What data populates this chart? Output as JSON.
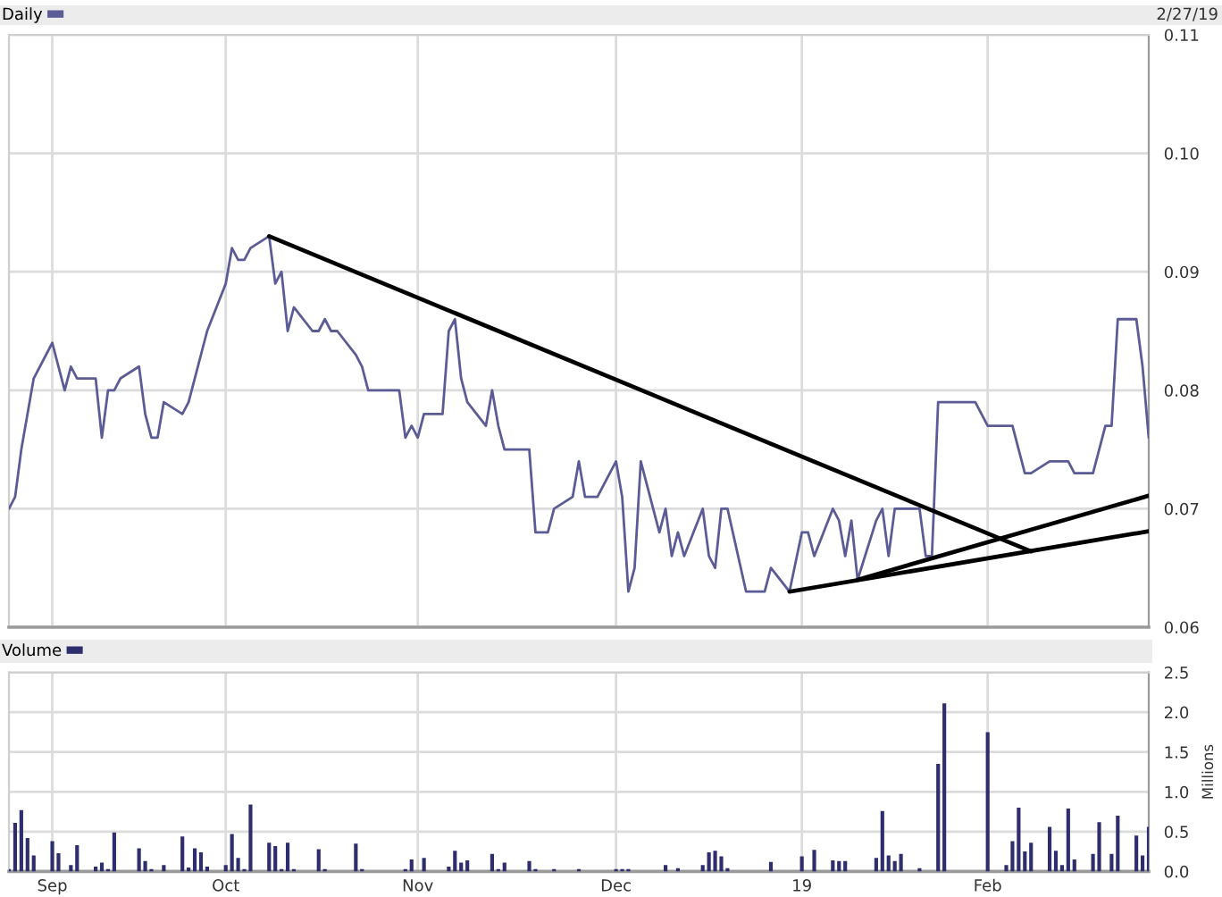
{
  "chart_data": [
    {
      "type": "line",
      "x": [
        "2018-08-27",
        "2018-08-28",
        "2018-08-29",
        "2018-08-30",
        "2018-08-31",
        "2018-09-03",
        "2018-09-04",
        "2018-09-05",
        "2018-09-06",
        "2018-09-07",
        "2018-09-10",
        "2018-09-11",
        "2018-09-12",
        "2018-09-13",
        "2018-09-14",
        "2018-09-17",
        "2018-09-18",
        "2018-09-19",
        "2018-09-20",
        "2018-09-21",
        "2018-09-24",
        "2018-09-25",
        "2018-09-26",
        "2018-09-27",
        "2018-09-28",
        "2018-10-01",
        "2018-10-02",
        "2018-10-03",
        "2018-10-04",
        "2018-10-05",
        "2018-10-08",
        "2018-10-09",
        "2018-10-10",
        "2018-10-11",
        "2018-10-12",
        "2018-10-15",
        "2018-10-16",
        "2018-10-17",
        "2018-10-18",
        "2018-10-19",
        "2018-10-22",
        "2018-10-23",
        "2018-10-24",
        "2018-10-25",
        "2018-10-26",
        "2018-10-29",
        "2018-10-30",
        "2018-10-31",
        "2018-11-01",
        "2018-11-02",
        "2018-11-05",
        "2018-11-06",
        "2018-11-07",
        "2018-11-08",
        "2018-11-09",
        "2018-11-12",
        "2018-11-13",
        "2018-11-14",
        "2018-11-15",
        "2018-11-16",
        "2018-11-19",
        "2018-11-20",
        "2018-11-21",
        "2018-11-22",
        "2018-11-23",
        "2018-11-26",
        "2018-11-27",
        "2018-11-28",
        "2018-11-29",
        "2018-11-30",
        "2018-12-03",
        "2018-12-04",
        "2018-12-05",
        "2018-12-06",
        "2018-12-07",
        "2018-12-10",
        "2018-12-11",
        "2018-12-12",
        "2018-12-13",
        "2018-12-14",
        "2018-12-17",
        "2018-12-18",
        "2018-12-19",
        "2018-12-20",
        "2018-12-21",
        "2018-12-24",
        "2018-12-27",
        "2018-12-28",
        "2018-12-31",
        "2019-01-02",
        "2019-01-03",
        "2019-01-04",
        "2019-01-07",
        "2019-01-08",
        "2019-01-09",
        "2019-01-10",
        "2019-01-11",
        "2019-01-14",
        "2019-01-15",
        "2019-01-16",
        "2019-01-17",
        "2019-01-18",
        "2019-01-21",
        "2019-01-22",
        "2019-01-23",
        "2019-01-24",
        "2019-01-25",
        "2019-01-29",
        "2019-01-30",
        "2019-01-31",
        "2019-02-01",
        "2019-02-04",
        "2019-02-05",
        "2019-02-06",
        "2019-02-07",
        "2019-02-08",
        "2019-02-11",
        "2019-02-12",
        "2019-02-13",
        "2019-02-14",
        "2019-02-15",
        "2019-02-18",
        "2019-02-19",
        "2019-02-20",
        "2019-02-21",
        "2019-02-22",
        "2019-02-25",
        "2019-02-26",
        "2019-02-27"
      ],
      "series": [
        {
          "name": "Daily",
          "color": "#5b5b95",
          "values": [
            0.07,
            0.071,
            0.075,
            0.078,
            0.081,
            0.084,
            0.082,
            0.08,
            0.082,
            0.081,
            0.081,
            0.076,
            0.08,
            0.08,
            0.081,
            0.082,
            0.078,
            0.076,
            0.076,
            0.079,
            0.078,
            0.079,
            0.081,
            0.083,
            0.085,
            0.089,
            0.092,
            0.091,
            0.091,
            0.092,
            0.093,
            0.089,
            0.09,
            0.085,
            0.087,
            0.085,
            0.085,
            0.086,
            0.085,
            0.085,
            0.083,
            0.082,
            0.08,
            0.08,
            0.08,
            0.08,
            0.076,
            0.077,
            0.076,
            0.078,
            0.078,
            0.085,
            0.086,
            0.081,
            0.079,
            0.077,
            0.08,
            0.077,
            0.075,
            0.075,
            0.075,
            0.068,
            0.068,
            0.068,
            0.07,
            0.071,
            0.074,
            0.071,
            0.071,
            0.071,
            0.074,
            0.071,
            0.063,
            0.065,
            0.074,
            0.068,
            0.07,
            0.066,
            0.068,
            0.066,
            0.07,
            0.066,
            0.065,
            0.07,
            0.07,
            0.063,
            0.063,
            0.065,
            0.063,
            0.068,
            0.068,
            0.066,
            0.07,
            0.069,
            0.066,
            0.069,
            0.064,
            0.069,
            0.07,
            0.066,
            0.07,
            0.07,
            0.07,
            0.066,
            0.066,
            0.079,
            0.079,
            0.079,
            0.079,
            0.078,
            0.077,
            0.077,
            0.077,
            0.075,
            0.073,
            0.073,
            0.074,
            0.074,
            0.074,
            0.074,
            0.073,
            0.073,
            0.075,
            0.077,
            0.077,
            0.086,
            0.086,
            0.082,
            0.076
          ]
        },
        {
          "color": "#000000",
          "x": [
            "2018-10-08",
            "2019-02-08"
          ],
          "values": [
            0.093,
            0.0664
          ]
        },
        {
          "color": "#000000",
          "x": [
            "2018-12-31",
            "2019-02-27"
          ],
          "values": [
            0.063,
            0.0681
          ]
        },
        {
          "color": "#000000",
          "x": [
            "2019-01-11",
            "2019-02-27"
          ],
          "values": [
            0.064,
            0.0711
          ]
        }
      ],
      "xlim": [
        "2018-08-27",
        "2019-02-27"
      ],
      "xticks": [
        {
          "value": "2018-09-03",
          "label": null
        },
        {
          "value": "2018-10-01",
          "label": null
        },
        {
          "value": "2018-11-01",
          "label": null
        },
        {
          "value": "2018-12-03",
          "label": null
        },
        {
          "value": "2019-01-02",
          "label": null
        },
        {
          "value": "2019-02-01",
          "label": null
        }
      ],
      "ylim": [
        0.06,
        0.11
      ],
      "yticks": [
        0.06,
        0.07,
        0.08,
        0.09,
        {
          "value": 0.1,
          "label": "0.10"
        },
        0.11
      ],
      "grid": true,
      "legend": "top left",
      "tick_labels": "y",
      "annotations": [
        "2/27/19"
      ]
    },
    {
      "type": "bar",
      "x": [
        "2018-08-27",
        "2018-08-28",
        "2018-08-29",
        "2018-08-30",
        "2018-08-31",
        "2018-09-03",
        "2018-09-04",
        "2018-09-05",
        "2018-09-06",
        "2018-09-07",
        "2018-09-10",
        "2018-09-11",
        "2018-09-12",
        "2018-09-13",
        "2018-09-14",
        "2018-09-17",
        "2018-09-18",
        "2018-09-19",
        "2018-09-20",
        "2018-09-21",
        "2018-09-24",
        "2018-09-25",
        "2018-09-26",
        "2018-09-27",
        "2018-09-28",
        "2018-10-01",
        "2018-10-02",
        "2018-10-03",
        "2018-10-04",
        "2018-10-05",
        "2018-10-08",
        "2018-10-09",
        "2018-10-10",
        "2018-10-11",
        "2018-10-12",
        "2018-10-15",
        "2018-10-16",
        "2018-10-17",
        "2018-10-18",
        "2018-10-19",
        "2018-10-22",
        "2018-10-23",
        "2018-10-24",
        "2018-10-25",
        "2018-10-26",
        "2018-10-29",
        "2018-10-30",
        "2018-10-31",
        "2018-11-01",
        "2018-11-02",
        "2018-11-05",
        "2018-11-06",
        "2018-11-07",
        "2018-11-08",
        "2018-11-09",
        "2018-11-12",
        "2018-11-13",
        "2018-11-14",
        "2018-11-15",
        "2018-11-16",
        "2018-11-19",
        "2018-11-20",
        "2018-11-21",
        "2018-11-22",
        "2018-11-23",
        "2018-11-26",
        "2018-11-27",
        "2018-11-28",
        "2018-11-29",
        "2018-11-30",
        "2018-12-03",
        "2018-12-04",
        "2018-12-05",
        "2018-12-06",
        "2018-12-07",
        "2018-12-10",
        "2018-12-11",
        "2018-12-12",
        "2018-12-13",
        "2018-12-14",
        "2018-12-17",
        "2018-12-18",
        "2018-12-19",
        "2018-12-20",
        "2018-12-21",
        "2018-12-24",
        "2018-12-27",
        "2018-12-28",
        "2018-12-31",
        "2019-01-02",
        "2019-01-03",
        "2019-01-04",
        "2019-01-07",
        "2019-01-08",
        "2019-01-09",
        "2019-01-10",
        "2019-01-11",
        "2019-01-14",
        "2019-01-15",
        "2019-01-16",
        "2019-01-17",
        "2019-01-18",
        "2019-01-21",
        "2019-01-22",
        "2019-01-23",
        "2019-01-24",
        "2019-01-25",
        "2019-01-29",
        "2019-01-30",
        "2019-01-31",
        "2019-02-01",
        "2019-02-04",
        "2019-02-05",
        "2019-02-06",
        "2019-02-07",
        "2019-02-08",
        "2019-02-11",
        "2019-02-12",
        "2019-02-13",
        "2019-02-14",
        "2019-02-15",
        "2019-02-18",
        "2019-02-19",
        "2019-02-20",
        "2019-02-21",
        "2019-02-22",
        "2019-02-25",
        "2019-02-26",
        "2019-02-27"
      ],
      "series": [
        {
          "name": "Volume",
          "color": "#2e2e6e",
          "values": [
            0.03,
            0.61,
            0.77,
            0.42,
            0.2,
            0.38,
            0.23,
            null,
            0.08,
            0.33,
            0.06,
            0.11,
            0.03,
            0.49,
            null,
            0.29,
            0.13,
            0.03,
            null,
            0.08,
            0.44,
            0.05,
            0.29,
            0.24,
            0.06,
            0.08,
            0.47,
            0.17,
            0.03,
            0.84,
            0.36,
            0.32,
            0.03,
            0.36,
            0.03,
            null,
            0.28,
            0.03,
            null,
            null,
            0.35,
            0.03,
            null,
            null,
            null,
            null,
            0.03,
            0.15,
            null,
            0.17,
            null,
            0.06,
            0.26,
            0.11,
            0.14,
            null,
            0.22,
            0.03,
            0.11,
            null,
            0.13,
            0.03,
            null,
            null,
            0.03,
            null,
            0.03,
            null,
            null,
            null,
            0.03,
            0.03,
            0.03,
            null,
            null,
            null,
            0.08,
            null,
            0.04,
            null,
            0.08,
            0.24,
            0.26,
            0.19,
            0.04,
            null,
            null,
            0.12,
            null,
            0.19,
            null,
            0.27,
            0.14,
            0.13,
            0.13,
            null,
            null,
            0.17,
            0.76,
            0.2,
            0.13,
            0.22,
            0.04,
            null,
            null,
            1.35,
            2.11,
            null,
            null,
            null,
            1.75,
            0.08,
            0.38,
            0.8,
            0.25,
            0.36,
            0.56,
            0.26,
            0.08,
            0.79,
            0.15,
            0.22,
            0.62,
            null,
            0.22,
            0.7,
            0.45,
            0.2,
            0.56
          ]
        }
      ],
      "xlim": [
        "2018-08-27",
        "2019-02-27"
      ],
      "xticks": [
        {
          "value": "2018-09-03",
          "label": "Sep"
        },
        {
          "value": "2018-10-01",
          "label": "Oct"
        },
        {
          "value": "2018-11-01",
          "label": "Nov"
        },
        {
          "value": "2018-12-03",
          "label": "Dec"
        },
        {
          "value": "2019-01-02",
          "label": "19"
        },
        {
          "value": "2019-02-01",
          "label": "Feb"
        }
      ],
      "ylim": [
        0,
        2.5
      ],
      "yticks": [
        {
          "value": 0,
          "label": "0.0"
        },
        {
          "value": 0.5,
          "label": "0.5"
        },
        {
          "value": 1,
          "label": "1.0"
        },
        {
          "value": 1.5,
          "label": "1.5"
        },
        {
          "value": 2,
          "label": "2.0"
        },
        {
          "value": 2.5,
          "label": "2.5"
        }
      ],
      "ylabel": "Millions",
      "grid": true,
      "legend": "top left"
    }
  ]
}
